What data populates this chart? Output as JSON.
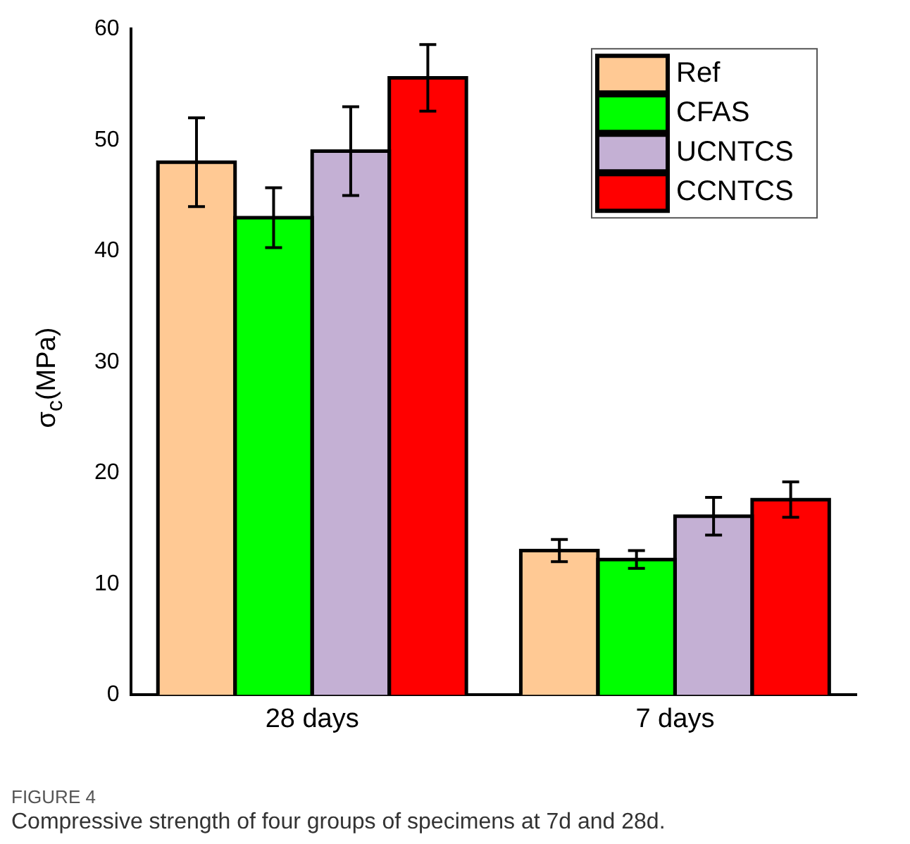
{
  "chart_data": {
    "type": "bar",
    "ylabel": "σ$_{c}$(MPa)",
    "categories": [
      "28 days",
      "7 days"
    ],
    "series": [
      {
        "name": "Ref",
        "color": "#ffc994",
        "values": [
          48,
          13.0
        ],
        "errors": [
          4,
          1.0
        ]
      },
      {
        "name": "CFAS",
        "color": "#00ff00",
        "values": [
          43,
          12.2
        ],
        "errors": [
          2.7,
          0.8
        ]
      },
      {
        "name": "UCNTCS",
        "color": "#c4b0d4",
        "values": [
          49,
          16.1
        ],
        "errors": [
          4,
          1.7
        ]
      },
      {
        "name": "CCNTCS",
        "color": "#ff0000",
        "values": [
          55.6,
          17.6
        ],
        "errors": [
          3,
          1.6
        ]
      }
    ],
    "ylim": [
      0,
      60
    ],
    "yticks": [
      0,
      10,
      20,
      30,
      40,
      50,
      60
    ],
    "grid": false,
    "legend": "top right",
    "annotations": [
      "FIGURE 4",
      "Compressive strength of four groups of specimens at 7d and 28d."
    ]
  }
}
